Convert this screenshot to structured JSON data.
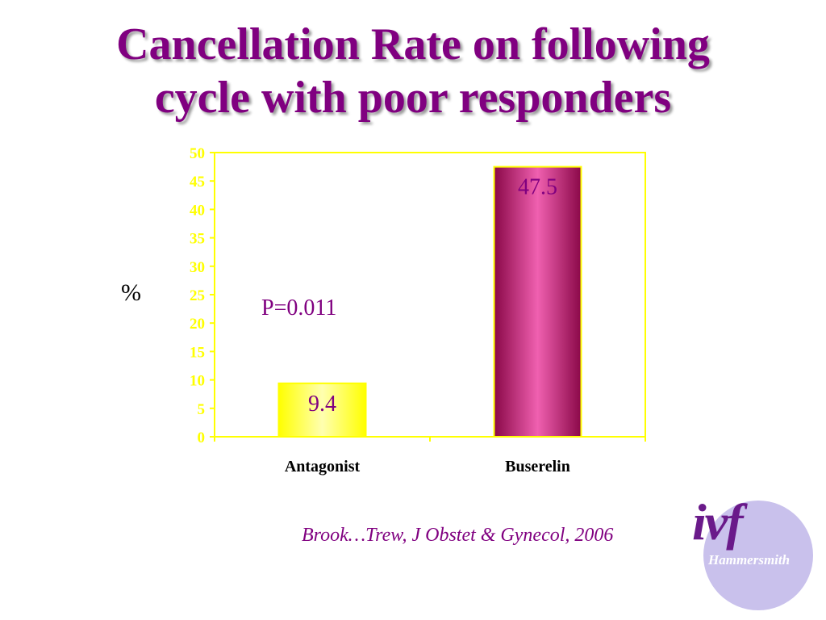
{
  "slide": {
    "title_line1": "Cancellation Rate on following",
    "title_line2": "cycle  with poor responders",
    "y_unit": "%",
    "annotation": "P=0.011",
    "citation": "Brook…Trew, J Obstet & Gynecol, 2006"
  },
  "logo": {
    "word": "ivf",
    "sub": "Hammersmith"
  },
  "chart_data": {
    "type": "bar",
    "title": "",
    "xlabel": "",
    "ylabel": "%",
    "ylim": [
      0,
      50
    ],
    "ytick_step": 5,
    "categories": [
      "Antagonist",
      "Buserelin"
    ],
    "values": [
      9.4,
      47.5
    ],
    "data_labels": [
      "9.4",
      "47.5"
    ],
    "bar_colors": [
      "#ffff00",
      "#b01070"
    ],
    "grid": false,
    "legend": "none"
  }
}
